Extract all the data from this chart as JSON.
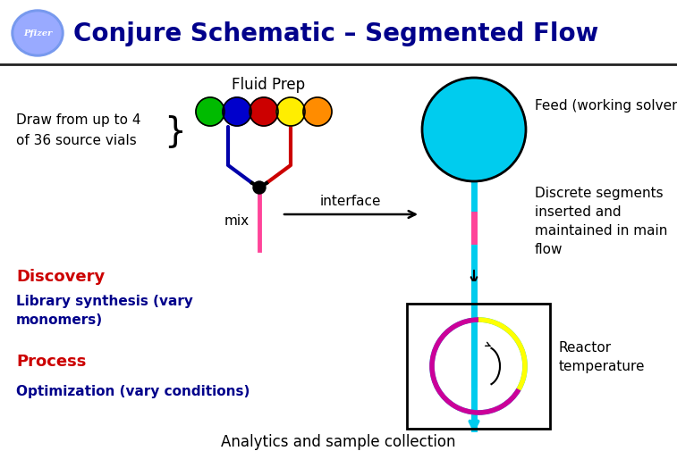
{
  "title": "Conjure Schematic – Segmented Flow",
  "title_color": "#00008B",
  "title_fontsize": 20,
  "bg_color": "#FFFFFF",
  "header_line_color": "#000000",
  "pfizer_bg": "#6699DD",
  "dot_colors": [
    "#00BB00",
    "#0000CC",
    "#CC0000",
    "#FFEE00",
    "#FF8C00"
  ],
  "fluid_prep_label": "Fluid Prep",
  "draw_label_line1": "Draw from up to 4",
  "draw_label_line2": "of 36 source vials",
  "feed_label": "Feed (working solvent",
  "mix_label": "mix",
  "interface_label": "interface",
  "discrete_label": "Discrete segments\ninserted and\nmaintained in main\nflow",
  "discovery_label": "Discovery",
  "library_label": "Library synthesis (vary\nmonomers)",
  "process_label": "Process",
  "optimization_label": "Optimization (vary conditions)",
  "reactor_label": "Reactor\ntemperature",
  "analytics_label": "Analytics and sample collection",
  "red_color": "#CC0000",
  "dark_blue_color": "#00008B",
  "cyan_color": "#00CCEE",
  "magenta_color": "#CC0099",
  "yellow_color": "#FFFF00",
  "orange_red_color": "#CC3300",
  "pink_color": "#FF4499",
  "blue_tube_color": "#0000AA",
  "red_tube_color": "#CC0000"
}
